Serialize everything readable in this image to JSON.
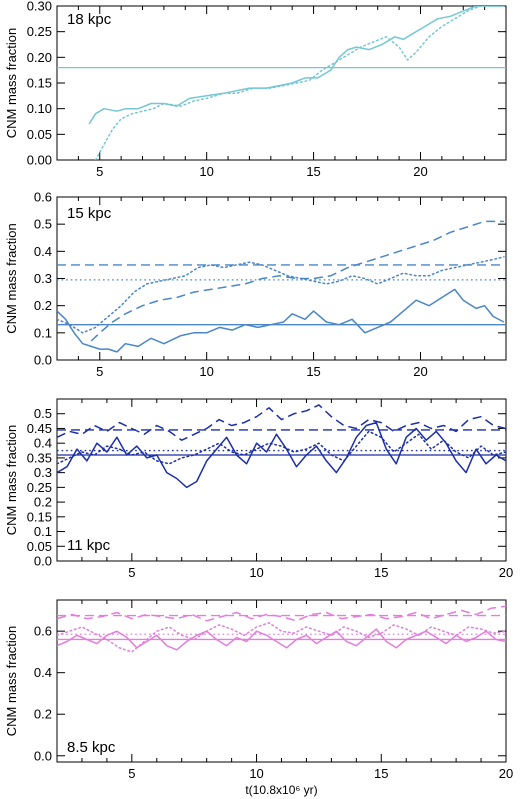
{
  "chart_data": [
    {
      "type": "line",
      "label": "18 kpc",
      "ylabel": "CNM mass fraction",
      "xlabel": "",
      "xlim": [
        3,
        24
      ],
      "ylim": [
        0,
        0.3
      ],
      "xticks": [
        5,
        10,
        15,
        20
      ],
      "yticks": [
        0.0,
        0.05,
        0.1,
        0.15,
        0.2,
        0.25,
        0.3
      ],
      "ytick_labels": [
        "0.00",
        "0.05",
        "0.10",
        "0.15",
        "0.20",
        "0.25",
        "0.30"
      ],
      "color": "#74c7d3",
      "hlines": [
        {
          "style": "solid",
          "y": 0.18
        }
      ],
      "series": [
        {
          "style": "solid",
          "x": [
            4.5,
            4.8,
            5.2,
            5.8,
            6.2,
            6.8,
            7.4,
            8.0,
            8.6,
            9.2,
            10.0,
            10.8,
            11.4,
            12.0,
            12.8,
            13.4,
            14.0,
            14.6,
            15.2,
            15.8,
            16.2,
            16.6,
            17.0,
            17.6,
            18.2,
            18.8,
            19.2,
            19.6,
            20.2,
            20.8,
            21.4,
            22.0,
            22.6,
            23.2,
            23.8
          ],
          "y": [
            0.07,
            0.09,
            0.1,
            0.095,
            0.1,
            0.1,
            0.11,
            0.11,
            0.105,
            0.12,
            0.125,
            0.13,
            0.135,
            0.14,
            0.14,
            0.145,
            0.15,
            0.16,
            0.16,
            0.175,
            0.2,
            0.215,
            0.22,
            0.215,
            0.225,
            0.24,
            0.235,
            0.245,
            0.26,
            0.275,
            0.28,
            0.29,
            0.3,
            0.3,
            0.3
          ]
        },
        {
          "style": "dotted",
          "x": [
            4.8,
            5.2,
            5.6,
            6.0,
            6.5,
            7.0,
            7.5,
            8.0,
            8.8,
            9.4,
            10.0,
            10.8,
            11.4,
            12.2,
            13.0,
            13.6,
            14.2,
            14.8,
            15.4,
            16.0,
            16.6,
            17.2,
            17.8,
            18.4,
            19.0,
            19.4,
            19.8,
            20.4,
            21.0,
            21.6,
            22.2,
            22.8,
            23.4,
            23.9
          ],
          "y": [
            0.0,
            0.03,
            0.06,
            0.08,
            0.09,
            0.095,
            0.1,
            0.11,
            0.105,
            0.115,
            0.12,
            0.13,
            0.13,
            0.14,
            0.14,
            0.145,
            0.15,
            0.155,
            0.175,
            0.19,
            0.205,
            0.22,
            0.23,
            0.24,
            0.22,
            0.195,
            0.21,
            0.24,
            0.26,
            0.275,
            0.29,
            0.3,
            0.3,
            0.3
          ]
        }
      ]
    },
    {
      "type": "line",
      "label": "15 kpc",
      "ylabel": "CNM mass fraction",
      "xlabel": "",
      "xlim": [
        3,
        24
      ],
      "ylim": [
        0,
        0.6
      ],
      "xticks": [
        5,
        10,
        15,
        20
      ],
      "yticks": [
        0.0,
        0.1,
        0.2,
        0.3,
        0.4,
        0.5,
        0.6
      ],
      "ytick_labels": [
        "0.0",
        "0.1",
        "0.2",
        "0.3",
        "0.4",
        "0.5",
        "0.6"
      ],
      "color": "#4a86c8",
      "hlines": [
        {
          "style": "solid",
          "y": 0.13
        },
        {
          "style": "dashed",
          "y": 0.35
        },
        {
          "style": "dotted",
          "y": 0.295
        }
      ],
      "series": [
        {
          "style": "solid",
          "x": [
            3.0,
            3.4,
            3.8,
            4.2,
            4.6,
            5.0,
            5.4,
            5.8,
            6.2,
            6.8,
            7.4,
            8.0,
            8.8,
            9.4,
            10.0,
            10.6,
            11.2,
            11.8,
            12.4,
            13.0,
            13.6,
            14.0,
            14.6,
            15.0,
            15.6,
            16.2,
            16.8,
            17.4,
            18.0,
            18.6,
            19.2,
            19.8,
            20.4,
            21.0,
            21.6,
            22.0,
            22.6,
            23.0,
            23.4,
            23.9
          ],
          "y": [
            0.18,
            0.15,
            0.1,
            0.06,
            0.05,
            0.04,
            0.04,
            0.03,
            0.06,
            0.05,
            0.08,
            0.06,
            0.09,
            0.1,
            0.1,
            0.12,
            0.11,
            0.13,
            0.12,
            0.13,
            0.14,
            0.17,
            0.15,
            0.18,
            0.14,
            0.13,
            0.15,
            0.1,
            0.12,
            0.14,
            0.18,
            0.22,
            0.2,
            0.23,
            0.26,
            0.22,
            0.19,
            0.2,
            0.16,
            0.14
          ]
        },
        {
          "style": "dashed",
          "x": [
            4.6,
            5.0,
            5.6,
            6.2,
            7.0,
            7.8,
            8.6,
            9.4,
            10.2,
            11.0,
            11.8,
            12.6,
            13.4,
            14.2,
            15.0,
            15.8,
            16.6,
            17.4,
            18.2,
            19.0,
            19.8,
            20.6,
            21.4,
            22.2,
            23.0,
            23.9
          ],
          "y": [
            0.07,
            0.1,
            0.14,
            0.17,
            0.2,
            0.22,
            0.23,
            0.25,
            0.26,
            0.27,
            0.28,
            0.3,
            0.31,
            0.3,
            0.3,
            0.31,
            0.34,
            0.36,
            0.38,
            0.4,
            0.42,
            0.44,
            0.47,
            0.49,
            0.51,
            0.51
          ]
        },
        {
          "style": "dotted",
          "x": [
            3.0,
            3.6,
            4.2,
            4.8,
            5.4,
            6.0,
            6.6,
            7.2,
            7.8,
            8.4,
            9.0,
            9.6,
            10.2,
            10.8,
            11.4,
            12.0,
            12.6,
            13.2,
            13.8,
            14.4,
            15.0,
            15.6,
            16.2,
            16.8,
            17.4,
            18.0,
            18.6,
            19.2,
            19.8,
            20.4,
            21.0,
            21.6,
            22.2,
            22.8,
            23.4,
            23.9
          ],
          "y": [
            0.15,
            0.13,
            0.1,
            0.12,
            0.16,
            0.2,
            0.25,
            0.28,
            0.29,
            0.3,
            0.31,
            0.34,
            0.35,
            0.34,
            0.35,
            0.36,
            0.35,
            0.33,
            0.31,
            0.3,
            0.29,
            0.28,
            0.29,
            0.31,
            0.3,
            0.28,
            0.3,
            0.32,
            0.31,
            0.31,
            0.33,
            0.34,
            0.35,
            0.36,
            0.37,
            0.38
          ]
        }
      ]
    },
    {
      "type": "line",
      "label": "11 kpc",
      "ylabel": "CNM mass fraction",
      "xlabel": "",
      "xlim": [
        2,
        20
      ],
      "ylim": [
        0,
        0.55
      ],
      "xticks": [
        5,
        10,
        15,
        20
      ],
      "yticks": [
        0.0,
        0.05,
        0.1,
        0.15,
        0.2,
        0.25,
        0.3,
        0.35,
        0.4,
        0.45,
        0.5
      ],
      "ytick_labels": [
        "0.0",
        "0.05",
        "0.1",
        "0.15",
        "0.2",
        "0.25",
        "0.3",
        "0.35",
        "0.4",
        "0.45",
        "0.5"
      ],
      "color": "#1c2fa8",
      "hlines": [
        {
          "style": "solid",
          "y": 0.36
        },
        {
          "style": "dashed",
          "y": 0.445
        },
        {
          "style": "dotted",
          "y": 0.375
        }
      ],
      "series": [
        {
          "style": "solid",
          "x": [
            2.0,
            2.4,
            2.8,
            3.2,
            3.6,
            4.0,
            4.4,
            4.8,
            5.2,
            5.6,
            6.0,
            6.4,
            6.8,
            7.2,
            7.6,
            8.0,
            8.4,
            8.8,
            9.2,
            9.6,
            10.0,
            10.4,
            10.8,
            11.2,
            11.6,
            12.0,
            12.4,
            12.8,
            13.2,
            13.6,
            14.0,
            14.4,
            14.8,
            15.2,
            15.6,
            16.0,
            16.4,
            16.8,
            17.2,
            17.6,
            18.0,
            18.4,
            18.8,
            19.2,
            19.6,
            20.0
          ],
          "y": [
            0.3,
            0.32,
            0.38,
            0.34,
            0.4,
            0.37,
            0.42,
            0.36,
            0.39,
            0.35,
            0.36,
            0.3,
            0.28,
            0.25,
            0.27,
            0.34,
            0.38,
            0.42,
            0.36,
            0.33,
            0.4,
            0.37,
            0.43,
            0.38,
            0.32,
            0.36,
            0.39,
            0.34,
            0.3,
            0.35,
            0.42,
            0.46,
            0.47,
            0.38,
            0.33,
            0.42,
            0.45,
            0.41,
            0.44,
            0.4,
            0.34,
            0.3,
            0.38,
            0.33,
            0.36,
            0.34
          ]
        },
        {
          "style": "dashed",
          "x": [
            2.0,
            2.5,
            3.0,
            3.5,
            4.0,
            4.5,
            5.0,
            5.5,
            6.0,
            6.5,
            7.0,
            7.5,
            8.0,
            8.5,
            9.0,
            9.5,
            10.0,
            10.5,
            11.0,
            11.5,
            12.0,
            12.5,
            13.0,
            13.5,
            14.0,
            14.5,
            15.0,
            15.5,
            16.0,
            16.5,
            17.0,
            17.5,
            18.0,
            18.5,
            19.0,
            19.5,
            20.0
          ],
          "y": [
            0.42,
            0.44,
            0.43,
            0.46,
            0.44,
            0.47,
            0.45,
            0.43,
            0.46,
            0.44,
            0.41,
            0.43,
            0.45,
            0.48,
            0.46,
            0.47,
            0.49,
            0.52,
            0.48,
            0.5,
            0.51,
            0.53,
            0.49,
            0.46,
            0.45,
            0.48,
            0.47,
            0.44,
            0.46,
            0.47,
            0.45,
            0.46,
            0.44,
            0.48,
            0.49,
            0.46,
            0.45
          ]
        },
        {
          "style": "dotted",
          "x": [
            2.0,
            2.5,
            3.0,
            3.5,
            4.0,
            4.5,
            5.0,
            5.5,
            6.0,
            6.5,
            7.0,
            7.5,
            8.0,
            8.5,
            9.0,
            9.5,
            10.0,
            10.5,
            11.0,
            11.5,
            12.0,
            12.5,
            13.0,
            13.5,
            14.0,
            14.5,
            15.0,
            15.5,
            16.0,
            16.5,
            17.0,
            17.5,
            18.0,
            18.5,
            19.0,
            19.5,
            20.0
          ],
          "y": [
            0.33,
            0.35,
            0.37,
            0.36,
            0.39,
            0.38,
            0.36,
            0.37,
            0.34,
            0.33,
            0.35,
            0.36,
            0.38,
            0.4,
            0.37,
            0.36,
            0.38,
            0.4,
            0.39,
            0.37,
            0.38,
            0.4,
            0.36,
            0.34,
            0.39,
            0.44,
            0.42,
            0.37,
            0.4,
            0.43,
            0.38,
            0.41,
            0.37,
            0.35,
            0.39,
            0.36,
            0.37
          ]
        }
      ]
    },
    {
      "type": "line",
      "label": "8.5 kpc",
      "ylabel": "CNM mass fraction",
      "xlabel": "t(10.8x10⁶ yr)",
      "xlim": [
        2,
        20
      ],
      "ylim": [
        -0.03,
        0.75
      ],
      "xticks": [
        5,
        10,
        15,
        20
      ],
      "yticks": [
        0.0,
        0.2,
        0.4,
        0.6
      ],
      "ytick_labels": [
        "0.0",
        "0.2",
        "0.4",
        "0.6"
      ],
      "color": "#e27fdb",
      "hlines": [
        {
          "style": "solid",
          "y": 0.56
        },
        {
          "style": "dashed",
          "y": 0.675
        },
        {
          "style": "dotted",
          "y": 0.585
        }
      ],
      "series": [
        {
          "style": "solid",
          "x": [
            2.0,
            2.4,
            2.8,
            3.2,
            3.6,
            4.0,
            4.4,
            4.8,
            5.2,
            5.6,
            6.0,
            6.4,
            6.8,
            7.2,
            7.6,
            8.0,
            8.4,
            8.8,
            9.2,
            9.6,
            10.0,
            10.4,
            10.8,
            11.2,
            11.6,
            12.0,
            12.4,
            12.8,
            13.2,
            13.6,
            14.0,
            14.4,
            14.8,
            15.2,
            15.6,
            16.0,
            16.4,
            16.8,
            17.2,
            17.6,
            18.0,
            18.4,
            18.8,
            19.2,
            19.6,
            20.0
          ],
          "y": [
            0.53,
            0.55,
            0.58,
            0.56,
            0.54,
            0.58,
            0.6,
            0.57,
            0.52,
            0.55,
            0.58,
            0.53,
            0.51,
            0.55,
            0.58,
            0.6,
            0.56,
            0.53,
            0.57,
            0.55,
            0.6,
            0.58,
            0.55,
            0.52,
            0.56,
            0.58,
            0.54,
            0.57,
            0.6,
            0.55,
            0.53,
            0.57,
            0.61,
            0.55,
            0.52,
            0.56,
            0.58,
            0.6,
            0.57,
            0.54,
            0.58,
            0.55,
            0.57,
            0.6,
            0.56,
            0.55
          ]
        },
        {
          "style": "dashed",
          "x": [
            2.0,
            2.6,
            3.2,
            3.8,
            4.4,
            5.0,
            5.6,
            6.2,
            6.8,
            7.4,
            8.0,
            8.6,
            9.2,
            9.8,
            10.4,
            11.0,
            11.6,
            12.2,
            12.8,
            13.4,
            14.0,
            14.6,
            15.2,
            15.8,
            16.4,
            17.0,
            17.6,
            18.2,
            18.8,
            19.4,
            20.0
          ],
          "y": [
            0.66,
            0.68,
            0.66,
            0.67,
            0.69,
            0.66,
            0.68,
            0.67,
            0.66,
            0.68,
            0.65,
            0.67,
            0.69,
            0.66,
            0.68,
            0.67,
            0.65,
            0.68,
            0.69,
            0.66,
            0.67,
            0.68,
            0.66,
            0.67,
            0.69,
            0.66,
            0.68,
            0.7,
            0.68,
            0.71,
            0.72
          ]
        },
        {
          "style": "dotted",
          "x": [
            2.0,
            2.5,
            3.0,
            3.5,
            4.0,
            4.5,
            5.0,
            5.5,
            6.0,
            6.5,
            7.0,
            7.5,
            8.0,
            8.5,
            9.0,
            9.5,
            10.0,
            10.5,
            11.0,
            11.5,
            12.0,
            12.5,
            13.0,
            13.5,
            14.0,
            14.5,
            15.0,
            15.5,
            16.0,
            16.5,
            17.0,
            17.5,
            18.0,
            18.5,
            19.0,
            19.5,
            20.0
          ],
          "y": [
            0.58,
            0.6,
            0.62,
            0.59,
            0.56,
            0.52,
            0.5,
            0.55,
            0.6,
            0.62,
            0.58,
            0.56,
            0.6,
            0.63,
            0.61,
            0.58,
            0.62,
            0.64,
            0.6,
            0.59,
            0.62,
            0.6,
            0.58,
            0.62,
            0.6,
            0.57,
            0.59,
            0.63,
            0.61,
            0.58,
            0.62,
            0.6,
            0.58,
            0.62,
            0.61,
            0.59,
            0.6
          ]
        }
      ]
    }
  ]
}
